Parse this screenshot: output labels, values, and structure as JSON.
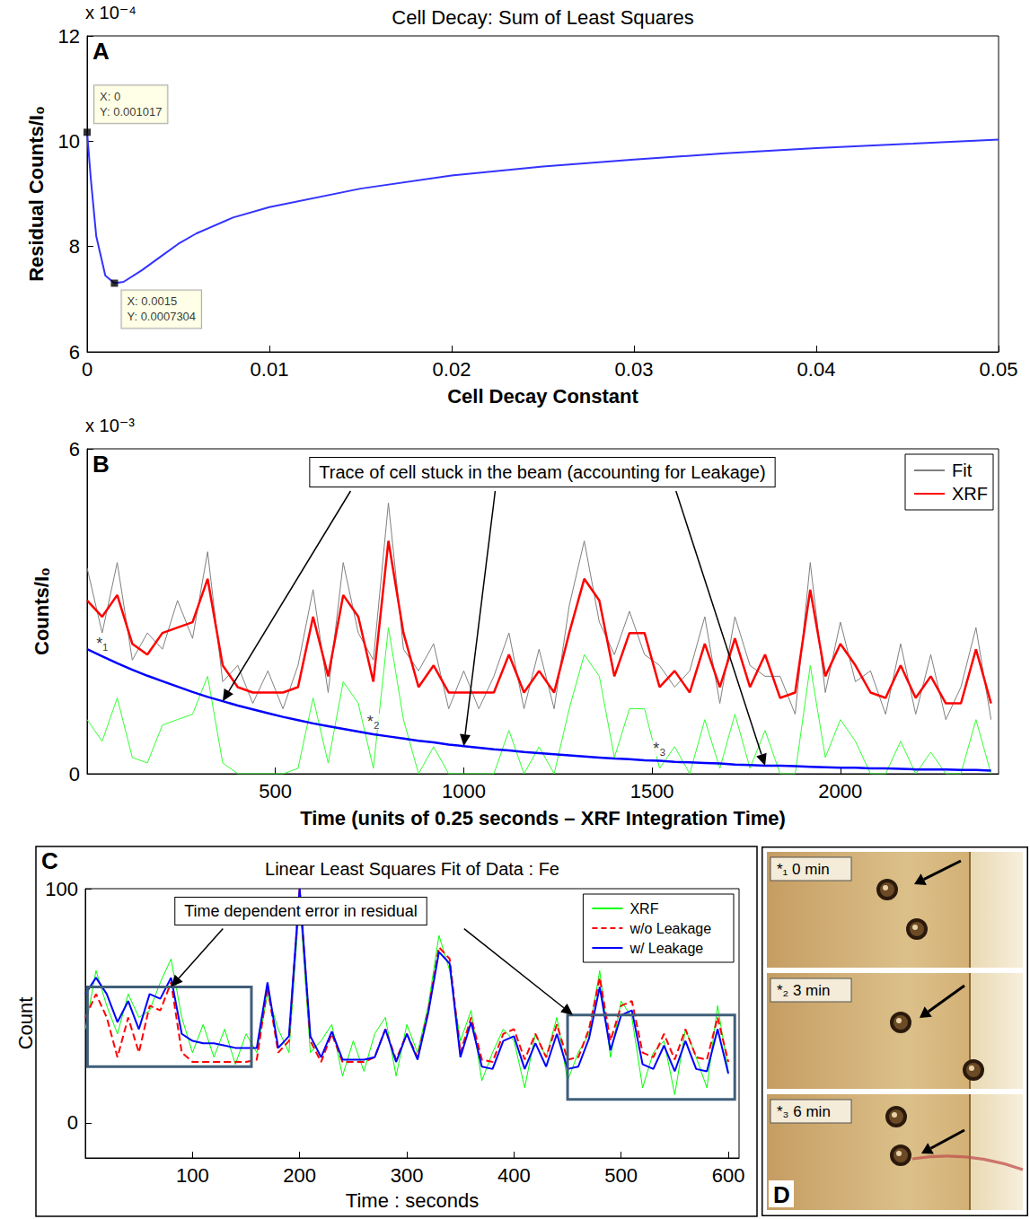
{
  "chart_data": [
    {
      "panel": "A",
      "type": "line",
      "title": "Cell Decay: Sum of Least Squares",
      "x_label": "Cell Decay Constant",
      "y_label": "Residual Counts/I₀",
      "y_multiplier": "x 10⁻⁴",
      "x": [
        0,
        0.0002,
        0.0005,
        0.001,
        0.0015,
        0.002,
        0.003,
        0.004,
        0.005,
        0.006,
        0.008,
        0.01,
        0.015,
        0.02,
        0.025,
        0.03,
        0.035,
        0.04,
        0.045,
        0.05
      ],
      "series": [
        {
          "color": "#3333ff",
          "values": [
            10.17,
            9.3,
            8.2,
            7.45,
            7.304,
            7.33,
            7.55,
            7.8,
            8.05,
            8.25,
            8.55,
            8.75,
            9.1,
            9.35,
            9.52,
            9.65,
            9.77,
            9.87,
            9.95,
            10.03
          ]
        }
      ],
      "xlim": [
        0,
        0.05
      ],
      "xticks": [
        0,
        0.01,
        0.02,
        0.03,
        0.04,
        0.05
      ],
      "ylim": [
        6,
        12
      ],
      "yticks": [
        6,
        8,
        10,
        12
      ],
      "grid": false,
      "data_tips": [
        {
          "x": 0,
          "y": 10.17,
          "lines": [
            "X: 0",
            "Y: 0.001017"
          ]
        },
        {
          "x": 0.0015,
          "y": 7.304,
          "lines": [
            "X: 0.0015",
            "Y: 0.0007304"
          ]
        }
      ]
    },
    {
      "panel": "B",
      "type": "line",
      "x_label": "Time (units of 0.25 seconds – XRF Integration Time)",
      "y_label": "Counts/I₀",
      "y_multiplier": "x 10⁻³",
      "x": [
        0,
        40,
        80,
        120,
        160,
        200,
        240,
        280,
        320,
        360,
        400,
        440,
        480,
        520,
        560,
        600,
        640,
        680,
        720,
        760,
        800,
        840,
        880,
        920,
        960,
        1000,
        1040,
        1080,
        1120,
        1160,
        1200,
        1240,
        1280,
        1320,
        1360,
        1400,
        1440,
        1480,
        1520,
        1560,
        1600,
        1640,
        1680,
        1720,
        1760,
        1800,
        1840,
        1880,
        1920,
        1960,
        2000,
        2040,
        2080,
        2120,
        2160,
        2200,
        2240,
        2280,
        2320,
        2360,
        2400
      ],
      "series": [
        {
          "name": "Fit",
          "color": "#808080",
          "values": [
            3.8,
            2.6,
            3.9,
            2.1,
            2.6,
            2.3,
            3.2,
            2.5,
            4.1,
            1.7,
            2.0,
            1.3,
            1.9,
            1.2,
            2.0,
            3.4,
            1.5,
            3.9,
            2.6,
            2.1,
            5.0,
            2.3,
            1.9,
            2.4,
            1.2,
            1.9,
            1.2,
            1.8,
            2.6,
            1.2,
            2.3,
            1.2,
            3.1,
            4.3,
            2.8,
            2.2,
            3.0,
            2.2,
            2.0,
            1.6,
            1.9,
            2.9,
            1.3,
            2.9,
            2.0,
            1.8,
            1.8,
            1.1,
            3.9,
            1.5,
            2.8,
            1.7,
            1.9,
            1.1,
            2.4,
            1.1,
            2.2,
            1.0,
            1.6,
            2.7,
            1.0
          ]
        },
        {
          "name": "XRF",
          "color": "#ff0000",
          "values": [
            3.2,
            2.9,
            3.3,
            2.4,
            2.2,
            2.6,
            2.7,
            2.8,
            3.6,
            2.0,
            1.6,
            1.5,
            1.5,
            1.5,
            1.6,
            2.9,
            1.8,
            3.3,
            2.9,
            1.7,
            4.3,
            2.6,
            1.6,
            2.0,
            1.5,
            1.5,
            1.5,
            1.5,
            2.2,
            1.5,
            1.9,
            1.5,
            2.6,
            3.6,
            3.2,
            1.8,
            2.6,
            2.6,
            1.6,
            1.9,
            1.5,
            2.4,
            1.6,
            2.5,
            1.6,
            2.2,
            1.4,
            1.5,
            3.4,
            1.8,
            2.4,
            2.0,
            1.5,
            1.4,
            2.0,
            1.4,
            1.8,
            1.3,
            1.3,
            2.3,
            1.3
          ]
        },
        {
          "color": "#33ff33",
          "values": [
            1.0,
            0.6,
            1.4,
            0.3,
            0.2,
            0.9,
            1.0,
            1.1,
            1.8,
            0.2,
            0,
            0,
            0,
            0,
            0.1,
            1.4,
            0.2,
            1.7,
            1.3,
            0.1,
            2.7,
            1.0,
            0,
            0.5,
            0,
            0,
            0,
            0,
            0.8,
            0,
            0.5,
            0,
            1.2,
            2.2,
            1.8,
            0.3,
            1.2,
            1.2,
            0.1,
            0.5,
            0,
            1.0,
            0.1,
            1.1,
            0.1,
            0.8,
            0,
            0,
            2.0,
            0.3,
            1.0,
            0.6,
            0,
            0,
            0.6,
            0,
            0.4,
            0,
            0,
            1.0,
            0
          ]
        },
        {
          "color": "#0000ff",
          "values": [
            2.3,
            2.17,
            2.04,
            1.92,
            1.81,
            1.71,
            1.61,
            1.51,
            1.42,
            1.34,
            1.26,
            1.19,
            1.12,
            1.05,
            0.99,
            0.93,
            0.88,
            0.83,
            0.78,
            0.73,
            0.69,
            0.65,
            0.61,
            0.58,
            0.54,
            0.51,
            0.48,
            0.45,
            0.43,
            0.4,
            0.38,
            0.36,
            0.34,
            0.32,
            0.3,
            0.28,
            0.27,
            0.25,
            0.24,
            0.22,
            0.21,
            0.2,
            0.19,
            0.17,
            0.16,
            0.15,
            0.15,
            0.14,
            0.13,
            0.12,
            0.11,
            0.11,
            0.1,
            0.1,
            0.09,
            0.08,
            0.08,
            0.08,
            0.07,
            0.07,
            0.06
          ]
        }
      ],
      "xlim": [
        0,
        2420
      ],
      "xticks": [
        500,
        1000,
        1500,
        2000
      ],
      "ylim": [
        0,
        6
      ],
      "yticks": [
        0,
        6
      ],
      "grid": false,
      "legend": "upper right",
      "annotation": {
        "text": "Trace of cell stuck in the beam (accounting for Leakage)",
        "arrow_to": [
          [
            360,
            1.34
          ],
          [
            1000,
            0.51
          ],
          [
            1800,
            0.15
          ]
        ]
      },
      "markers": [
        {
          "x": 40,
          "y": 2.17,
          "label": "*₁"
        },
        {
          "x": 760,
          "y": 0.73,
          "label": "*₂"
        },
        {
          "x": 1520,
          "y": 0.24,
          "label": "*₃"
        }
      ]
    },
    {
      "panel": "C",
      "type": "line",
      "title": "Linear Least Squares Fit of Data : Fe",
      "x_label": "Time : seconds",
      "y_label": "Count",
      "x": [
        0,
        10,
        20,
        30,
        40,
        50,
        60,
        70,
        80,
        90,
        100,
        110,
        120,
        130,
        140,
        150,
        160,
        170,
        180,
        190,
        200,
        210,
        220,
        230,
        240,
        250,
        260,
        270,
        280,
        290,
        300,
        310,
        320,
        330,
        340,
        350,
        360,
        370,
        380,
        390,
        400,
        410,
        420,
        430,
        440,
        450,
        460,
        470,
        480,
        490,
        500,
        510,
        520,
        530,
        540,
        550,
        560,
        570,
        580,
        590,
        600
      ],
      "series": [
        {
          "name": "XRF",
          "color": "#00ff00",
          "line_style": "solid",
          "values": [
            40,
            65,
            50,
            38,
            55,
            45,
            48,
            60,
            70,
            45,
            30,
            42,
            28,
            40,
            25,
            38,
            30,
            55,
            40,
            30,
            95,
            30,
            35,
            42,
            20,
            35,
            22,
            38,
            45,
            20,
            42,
            30,
            50,
            80,
            65,
            35,
            48,
            18,
            30,
            40,
            35,
            15,
            38,
            28,
            45,
            18,
            30,
            38,
            65,
            28,
            52,
            45,
            15,
            30,
            35,
            12,
            40,
            28,
            15,
            50,
            22
          ]
        },
        {
          "name": "w/o Leakage",
          "color": "#ff0000",
          "line_style": "dashed",
          "values": [
            45,
            55,
            45,
            28,
            45,
            30,
            50,
            48,
            60,
            30,
            26,
            26,
            26,
            26,
            26,
            26,
            27,
            58,
            30,
            35,
            100,
            35,
            26,
            38,
            26,
            26,
            26,
            28,
            40,
            27,
            38,
            28,
            48,
            75,
            70,
            30,
            45,
            27,
            26,
            38,
            40,
            27,
            38,
            28,
            42,
            27,
            28,
            40,
            62,
            35,
            50,
            52,
            30,
            28,
            38,
            27,
            40,
            28,
            27,
            45,
            26
          ]
        },
        {
          "name": "w/ Leakage",
          "color": "#0000ff",
          "line_style": "solid",
          "values": [
            55,
            62,
            55,
            43,
            52,
            40,
            55,
            53,
            62,
            38,
            35,
            34,
            34,
            33,
            32,
            32,
            32,
            60,
            32,
            37,
            100,
            37,
            28,
            39,
            27,
            27,
            27,
            28,
            40,
            26,
            38,
            27,
            47,
            73,
            68,
            28,
            43,
            24,
            23,
            35,
            37,
            23,
            34,
            24,
            38,
            23,
            24,
            36,
            58,
            31,
            46,
            48,
            25,
            23,
            33,
            22,
            35,
            23,
            22,
            40,
            21
          ]
        }
      ],
      "xlim": [
        0,
        610
      ],
      "xticks": [
        100,
        200,
        300,
        400,
        500,
        600
      ],
      "ylim": [
        -15,
        100
      ],
      "yticks": [
        0,
        100
      ],
      "grid": false,
      "legend": "upper right",
      "annotation": {
        "text": "Time dependent error in residual",
        "arrow_to": [
          [
            80,
            58
          ],
          [
            455,
            46
          ]
        ]
      },
      "boxes": [
        {
          "x": [
            2,
            155
          ],
          "y": [
            24,
            58
          ]
        },
        {
          "x": [
            450,
            606
          ],
          "y": [
            10,
            46
          ]
        }
      ]
    }
  ],
  "panel_d": {
    "letter": "D",
    "frame_labels": [
      "*₁ 0 min",
      "*₂ 3 min",
      "*₃ 6 min"
    ]
  }
}
